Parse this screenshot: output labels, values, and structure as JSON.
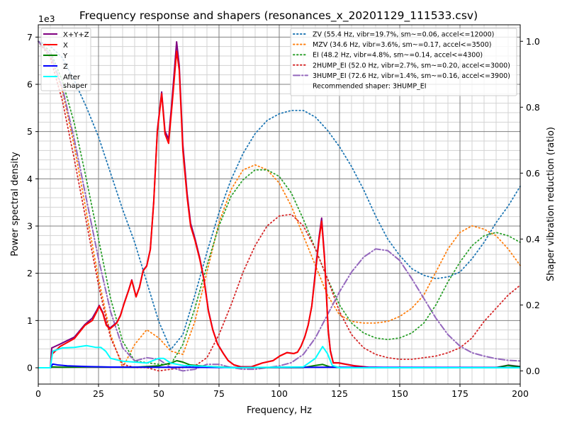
{
  "chart_data": {
    "type": "line",
    "title": "Frequency response and shapers (resonances_x_20201129_111533.csv)",
    "xlabel": "Frequency, Hz",
    "ylabel": "Power spectral density",
    "ylabel_right": "Shaper vibration reduction (ratio)",
    "y_offset_label": "1e3",
    "xlim": [
      0,
      200
    ],
    "ylim": [
      -345,
      7260
    ],
    "ylim_right": [
      -0.04,
      1.05
    ],
    "x_ticks": [
      0,
      25,
      50,
      75,
      100,
      125,
      150,
      175,
      200
    ],
    "y_ticks": [
      0,
      1000,
      2000,
      3000,
      4000,
      5000,
      6000,
      7000
    ],
    "y_tick_labels": [
      "0",
      "1",
      "2",
      "3",
      "4",
      "5",
      "6",
      "7"
    ],
    "y_ticks_right": [
      "0.0",
      "0.2",
      "0.4",
      "0.6",
      "0.8",
      "1.0"
    ],
    "grid": true,
    "legend_psd_placement": "top-left",
    "legend_shaper_placement": "top-right",
    "psd_series": [
      {
        "name": "X+Y+Z",
        "color": "#800080",
        "points": [
          [
            0,
            0
          ],
          [
            5,
            0
          ],
          [
            5.6,
            420
          ],
          [
            9,
            500
          ],
          [
            15,
            650
          ],
          [
            19.4,
            920
          ],
          [
            22.4,
            1050
          ],
          [
            24.4,
            1230
          ],
          [
            25.3,
            1320
          ],
          [
            26.8,
            1170
          ],
          [
            28.2,
            920
          ],
          [
            29.7,
            840
          ],
          [
            32.6,
            960
          ],
          [
            34.1,
            1110
          ],
          [
            35.6,
            1360
          ],
          [
            37.6,
            1660
          ],
          [
            38.8,
            1860
          ],
          [
            40.6,
            1510
          ],
          [
            42,
            1710
          ],
          [
            43.5,
            2060
          ],
          [
            45,
            2160
          ],
          [
            46.5,
            2510
          ],
          [
            47.9,
            3520
          ],
          [
            49.4,
            5030
          ],
          [
            51.2,
            5840
          ],
          [
            52.6,
            5010
          ],
          [
            54.1,
            4840
          ],
          [
            55.6,
            5720
          ],
          [
            57.4,
            6900
          ],
          [
            58.5,
            6400
          ],
          [
            60,
            4720
          ],
          [
            61.8,
            3680
          ],
          [
            63.2,
            3060
          ],
          [
            65,
            2740
          ],
          [
            67,
            2330
          ],
          [
            68.8,
            1870
          ],
          [
            70.6,
            1220
          ],
          [
            72.4,
            810
          ],
          [
            74.4,
            505
          ],
          [
            76.8,
            305
          ],
          [
            78.8,
            155
          ],
          [
            81.2,
            62
          ],
          [
            84,
            22
          ],
          [
            88.5,
            22
          ],
          [
            93,
            102
          ],
          [
            97.4,
            152
          ],
          [
            100.3,
            252
          ],
          [
            103.2,
            322
          ],
          [
            106,
            302
          ],
          [
            107.6,
            332
          ],
          [
            109,
            455
          ],
          [
            110.6,
            655
          ],
          [
            112,
            905
          ],
          [
            113.5,
            1310
          ],
          [
            115,
            2050
          ],
          [
            116.5,
            2760
          ],
          [
            117.6,
            3170
          ],
          [
            118.8,
            2350
          ],
          [
            120.3,
            820
          ],
          [
            121.2,
            370
          ],
          [
            122.4,
            110
          ],
          [
            124.7,
            105
          ],
          [
            126.8,
            85
          ],
          [
            131,
            45
          ],
          [
            137,
            12
          ],
          [
            150,
            5
          ],
          [
            190,
            5
          ],
          [
            195,
            55
          ],
          [
            200,
            25
          ]
        ]
      },
      {
        "name": "X",
        "color": "#ff0000",
        "points": [
          [
            0,
            0
          ],
          [
            5,
            0
          ],
          [
            5.6,
            280
          ],
          [
            9,
            450
          ],
          [
            15,
            620
          ],
          [
            19.4,
            900
          ],
          [
            22.4,
            1000
          ],
          [
            24.4,
            1200
          ],
          [
            25.3,
            1300
          ],
          [
            26.8,
            1150
          ],
          [
            28.2,
            900
          ],
          [
            29.7,
            820
          ],
          [
            32.6,
            950
          ],
          [
            34.1,
            1100
          ],
          [
            35.6,
            1350
          ],
          [
            37.6,
            1650
          ],
          [
            38.8,
            1850
          ],
          [
            40.6,
            1500
          ],
          [
            42,
            1700
          ],
          [
            43.5,
            2050
          ],
          [
            45,
            2150
          ],
          [
            46.5,
            2500
          ],
          [
            47.9,
            3500
          ],
          [
            49.4,
            5000
          ],
          [
            51.2,
            5800
          ],
          [
            52.6,
            4950
          ],
          [
            54.1,
            4750
          ],
          [
            55.6,
            5600
          ],
          [
            57.4,
            6700
          ],
          [
            58.5,
            6300
          ],
          [
            60,
            4600
          ],
          [
            61.8,
            3600
          ],
          [
            63.2,
            3000
          ],
          [
            65,
            2700
          ],
          [
            67,
            2300
          ],
          [
            68.8,
            1850
          ],
          [
            70.6,
            1200
          ],
          [
            72.4,
            800
          ],
          [
            74.4,
            500
          ],
          [
            76.8,
            300
          ],
          [
            78.8,
            150
          ],
          [
            81.2,
            60
          ],
          [
            84,
            20
          ],
          [
            88.5,
            20
          ],
          [
            93,
            100
          ],
          [
            97.4,
            150
          ],
          [
            100.3,
            250
          ],
          [
            103.2,
            320
          ],
          [
            106,
            300
          ],
          [
            107.6,
            330
          ],
          [
            109,
            450
          ],
          [
            110.6,
            650
          ],
          [
            112,
            900
          ],
          [
            113.5,
            1300
          ],
          [
            115,
            2000
          ],
          [
            116.5,
            2700
          ],
          [
            117.6,
            3100
          ],
          [
            118.8,
            2300
          ],
          [
            120.3,
            800
          ],
          [
            121.2,
            350
          ],
          [
            122.4,
            100
          ],
          [
            124.7,
            100
          ],
          [
            126.8,
            80
          ],
          [
            131,
            40
          ],
          [
            137,
            10
          ],
          [
            150,
            0
          ],
          [
            200,
            0
          ]
        ]
      },
      {
        "name": "Y",
        "color": "#008000",
        "points": [
          [
            0,
            0
          ],
          [
            5,
            0
          ],
          [
            6,
            20
          ],
          [
            10,
            10
          ],
          [
            20,
            20
          ],
          [
            30,
            15
          ],
          [
            40,
            10
          ],
          [
            50,
            40
          ],
          [
            55,
            100
          ],
          [
            57.5,
            150
          ],
          [
            60,
            120
          ],
          [
            63,
            60
          ],
          [
            70,
            30
          ],
          [
            80,
            5
          ],
          [
            110,
            5
          ],
          [
            115,
            50
          ],
          [
            118,
            70
          ],
          [
            121,
            20
          ],
          [
            125,
            5
          ],
          [
            190,
            5
          ],
          [
            195,
            50
          ],
          [
            200,
            20
          ]
        ]
      },
      {
        "name": "Z",
        "color": "#0000ff",
        "points": [
          [
            0,
            0
          ],
          [
            5,
            0
          ],
          [
            6,
            80
          ],
          [
            8,
            60
          ],
          [
            12,
            40
          ],
          [
            20,
            25
          ],
          [
            30,
            15
          ],
          [
            50,
            10
          ],
          [
            60,
            10
          ],
          [
            80,
            5
          ],
          [
            120,
            10
          ],
          [
            200,
            5
          ]
        ]
      },
      {
        "name": "After\nshaper",
        "color": "#00ffff",
        "points": [
          [
            0,
            0
          ],
          [
            5,
            0
          ],
          [
            6,
            350
          ],
          [
            10,
            420
          ],
          [
            15,
            430
          ],
          [
            20,
            470
          ],
          [
            24,
            430
          ],
          [
            26,
            430
          ],
          [
            28,
            350
          ],
          [
            30,
            200
          ],
          [
            35,
            140
          ],
          [
            40,
            120
          ],
          [
            45,
            100
          ],
          [
            50,
            200
          ],
          [
            52,
            200
          ],
          [
            55,
            100
          ],
          [
            60,
            50
          ],
          [
            70,
            30
          ],
          [
            80,
            0
          ],
          [
            110,
            20
          ],
          [
            115,
            200
          ],
          [
            118,
            450
          ],
          [
            120,
            300
          ],
          [
            122,
            50
          ],
          [
            125,
            0
          ],
          [
            200,
            0
          ]
        ]
      }
    ],
    "shaper_x": [
      0,
      5,
      10,
      15,
      20,
      25,
      30,
      35,
      40,
      45,
      50,
      55,
      60,
      65,
      70,
      75,
      80,
      85,
      90,
      95,
      100,
      105,
      110,
      115,
      120,
      125,
      130,
      135,
      140,
      145,
      150,
      155,
      160,
      165,
      170,
      175,
      180,
      185,
      190,
      195,
      200
    ],
    "shaper_series": [
      {
        "name": "ZV (55.4 Hz, vibr=19.7%, sm~=0.06, accel<=12000)",
        "color": "#1f77b4",
        "style": "dotted",
        "values": [
          1.0,
          0.985,
          0.95,
          0.88,
          0.8,
          0.71,
          0.6,
          0.49,
          0.39,
          0.27,
          0.15,
          0.065,
          0.11,
          0.23,
          0.36,
          0.48,
          0.58,
          0.66,
          0.72,
          0.76,
          0.78,
          0.79,
          0.79,
          0.77,
          0.73,
          0.68,
          0.62,
          0.55,
          0.47,
          0.4,
          0.35,
          0.31,
          0.29,
          0.28,
          0.285,
          0.3,
          0.34,
          0.39,
          0.45,
          0.5,
          0.56
        ]
      },
      {
        "name": "MZV (34.6 Hz, vibr=3.6%, sm~=0.17, accel<=3500)",
        "color": "#ff7f0e",
        "style": "dotted",
        "values": [
          1.0,
          0.96,
          0.85,
          0.68,
          0.48,
          0.28,
          0.11,
          0.01,
          0.08,
          0.125,
          0.1,
          0.06,
          0.05,
          0.15,
          0.3,
          0.45,
          0.55,
          0.61,
          0.625,
          0.61,
          0.57,
          0.5,
          0.41,
          0.32,
          0.23,
          0.17,
          0.15,
          0.145,
          0.145,
          0.15,
          0.165,
          0.19,
          0.23,
          0.3,
          0.37,
          0.42,
          0.44,
          0.43,
          0.41,
          0.37,
          0.32
        ]
      },
      {
        "name": "EI (48.2 Hz, vibr=4.8%, sm~=0.14, accel<=4300)",
        "color": "#2ca02c",
        "style": "dotted",
        "values": [
          1.0,
          0.97,
          0.88,
          0.75,
          0.58,
          0.4,
          0.22,
          0.09,
          0.03,
          0.025,
          0.02,
          0.02,
          0.08,
          0.19,
          0.32,
          0.44,
          0.53,
          0.58,
          0.61,
          0.61,
          0.59,
          0.54,
          0.46,
          0.37,
          0.28,
          0.2,
          0.145,
          0.115,
          0.1,
          0.095,
          0.1,
          0.115,
          0.145,
          0.2,
          0.27,
          0.33,
          0.38,
          0.41,
          0.42,
          0.41,
          0.39
        ]
      },
      {
        "name": "2HUMP_EI (52.0 Hz, vibr=2.7%, sm~=0.20, accel<=3000)",
        "color": "#d62728",
        "style": "dotted",
        "values": [
          1.0,
          0.95,
          0.82,
          0.64,
          0.45,
          0.26,
          0.1,
          0.02,
          0.01,
          0.01,
          0.0,
          0.005,
          0.01,
          0.015,
          0.04,
          0.11,
          0.2,
          0.3,
          0.38,
          0.44,
          0.47,
          0.475,
          0.44,
          0.37,
          0.28,
          0.18,
          0.11,
          0.07,
          0.05,
          0.04,
          0.035,
          0.035,
          0.04,
          0.045,
          0.055,
          0.07,
          0.1,
          0.15,
          0.19,
          0.23,
          0.26
        ]
      },
      {
        "name": "3HUMP_EI (72.6 Hz, vibr=1.4%, sm~=0.16, accel<=3900)",
        "color": "#9467bd",
        "style": "dashdot",
        "values": [
          1.0,
          0.96,
          0.86,
          0.7,
          0.52,
          0.34,
          0.18,
          0.07,
          0.03,
          0.04,
          0.035,
          0.01,
          0.0,
          0.005,
          0.02,
          0.02,
          0.01,
          0.005,
          0.005,
          0.01,
          0.015,
          0.025,
          0.05,
          0.1,
          0.17,
          0.24,
          0.3,
          0.345,
          0.37,
          0.365,
          0.335,
          0.28,
          0.22,
          0.16,
          0.11,
          0.075,
          0.055,
          0.045,
          0.037,
          0.032,
          0.03
        ]
      }
    ],
    "recommendation": "Recommended shaper: 3HUMP_EI"
  }
}
